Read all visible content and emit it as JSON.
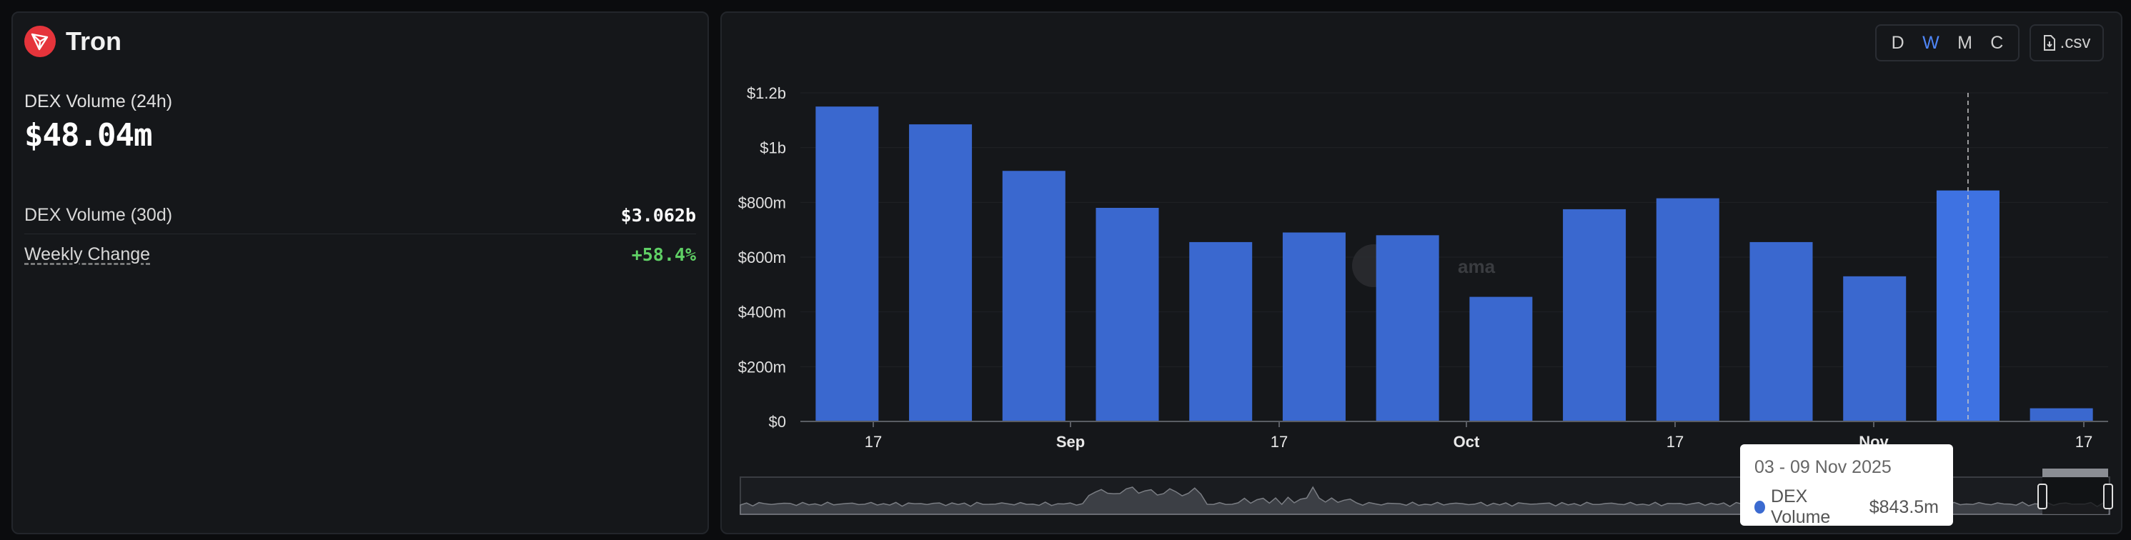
{
  "chain": {
    "name": "Tron",
    "icon": "tron-logo-icon",
    "accent": "#e5343b"
  },
  "stats": {
    "dex_volume_24h_label": "DEX Volume (24h)",
    "dex_volume_24h_value": "$48.04m",
    "dex_volume_30d_label": "DEX Volume (30d)",
    "dex_volume_30d_value": "$3.062b",
    "weekly_change_label": "Weekly Change",
    "weekly_change_value": "+58.4%"
  },
  "controls": {
    "periods": [
      "D",
      "W",
      "M",
      "C"
    ],
    "active_period": "W",
    "csv_label": ".csv"
  },
  "watermark": "ama",
  "tooltip": {
    "title": "03 - 09 Nov 2025",
    "series": "DEX Volume",
    "value": "$843.5m",
    "series_color": "#3b6ad0"
  },
  "chart_data": {
    "type": "bar",
    "series": [
      {
        "name": "DEX Volume",
        "values": [
          1150,
          1085,
          915,
          780,
          655,
          690,
          680,
          455,
          775,
          815,
          655,
          530,
          843.5,
          48
        ]
      }
    ],
    "x_ticks": [
      "17",
      "Sep",
      "17",
      "Oct",
      "17",
      "Nov",
      "17"
    ],
    "y_ticks": [
      "$0",
      "$200m",
      "$400m",
      "$600m",
      "$800m",
      "$1b",
      "$1.2b"
    ],
    "ylim": [
      0,
      1200
    ],
    "unit": "millions USD",
    "bar_color": "#3a68cf",
    "highlight_color": "#3e72e2",
    "highlighted_index": 12,
    "grid": true
  }
}
